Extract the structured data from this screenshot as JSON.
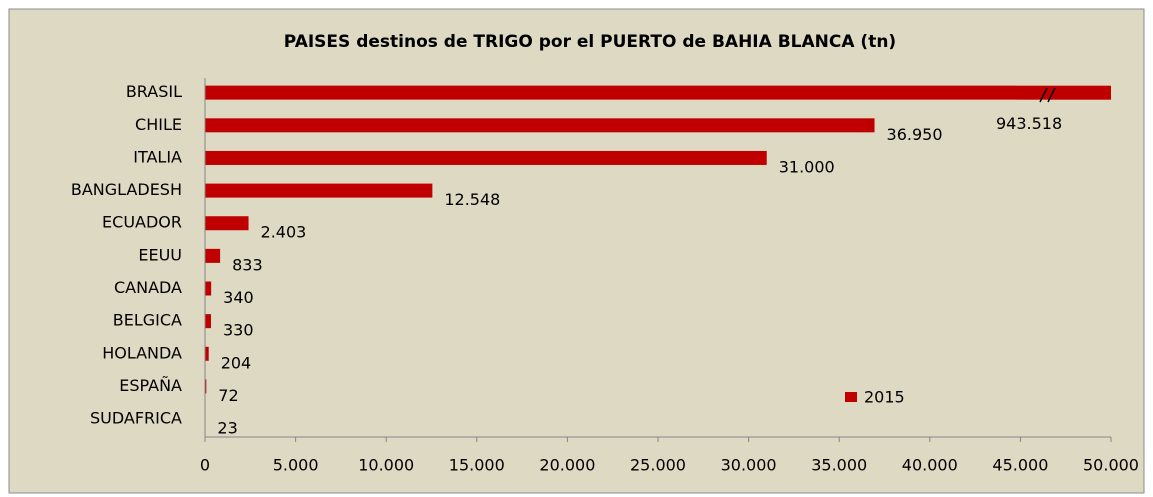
{
  "chart_data": {
    "type": "bar",
    "orientation": "horizontal",
    "title": "PAISES destinos de TRIGO por el PUERTO de BAHIA BLANCA (tn)",
    "categories": [
      "BRASIL",
      "CHILE",
      "ITALIA",
      "BANGLADESH",
      "ECUADOR",
      "EEUU",
      "CANADA",
      "BELGICA",
      "HOLANDA",
      "ESPAÑA",
      "SUDAFRICA"
    ],
    "series": [
      {
        "name": "2015",
        "color": "#c00000",
        "values": [
          943518,
          36950,
          31000,
          12548,
          2403,
          833,
          340,
          330,
          204,
          72,
          23
        ],
        "value_labels": [
          "943.518",
          "36.950",
          "31.000",
          "12.548",
          "2.403",
          "833",
          "340",
          "330",
          "204",
          "72",
          "23"
        ]
      }
    ],
    "xlim": [
      0,
      50000
    ],
    "xticks": [
      0,
      {
        "value": 5000,
        "label": "5.000"
      },
      {
        "value": 10000,
        "label": "10.000"
      },
      {
        "value": 15000,
        "label": "15.000"
      },
      {
        "value": 20000,
        "label": "20.000"
      },
      {
        "value": 25000,
        "label": "25.000"
      },
      {
        "value": 30000,
        "label": "30.000"
      },
      {
        "value": 35000,
        "label": "35.000"
      },
      {
        "value": 40000,
        "label": "40.000"
      },
      {
        "value": 45000,
        "label": "45.000"
      },
      {
        "value": 50000,
        "label": "50.000"
      }
    ],
    "legend": "inside-bottom-right"
  }
}
